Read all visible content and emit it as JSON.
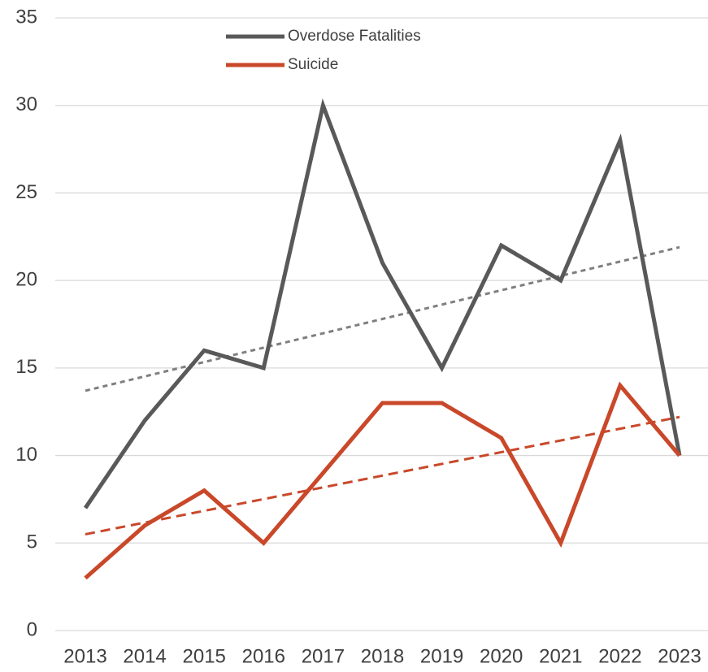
{
  "chart_data": {
    "type": "line",
    "categories": [
      "2013",
      "2014",
      "2015",
      "2016",
      "2017",
      "2018",
      "2019",
      "2020",
      "2021",
      "2022",
      "2023"
    ],
    "series": [
      {
        "name": "Overdose Fatalities",
        "color": "#595959",
        "values": [
          7,
          12,
          16,
          15,
          30,
          21,
          15,
          22,
          20,
          28,
          10
        ],
        "trend": [
          13.7,
          21.9
        ],
        "trend_color": "#7f7f7f"
      },
      {
        "name": "Suicide",
        "color": "#c9482a",
        "values": [
          3,
          6,
          8,
          5,
          9,
          13,
          13,
          11,
          5,
          14,
          10
        ],
        "trend": [
          5.5,
          12.2
        ],
        "trend_color": "#c9482a"
      }
    ],
    "ylim": [
      0,
      35
    ],
    "yticks": [
      0,
      5,
      10,
      15,
      20,
      25,
      30,
      35
    ],
    "grid": true,
    "legend": "upper center"
  }
}
